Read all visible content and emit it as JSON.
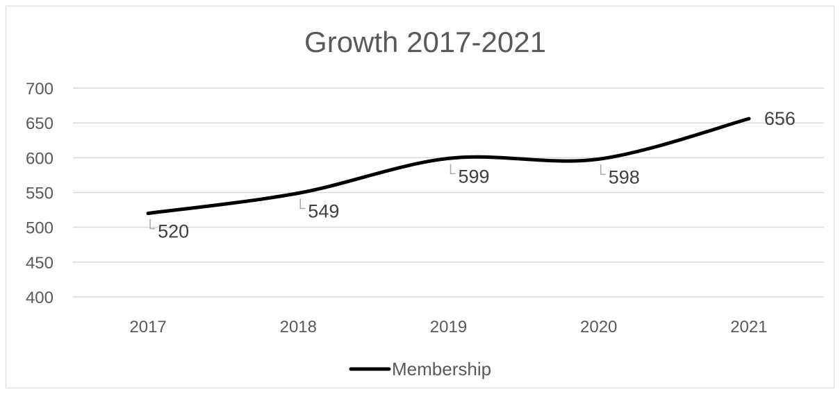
{
  "chart_data": {
    "type": "line",
    "title": "Growth 2017-2021",
    "categories": [
      "2017",
      "2018",
      "2019",
      "2020",
      "2021"
    ],
    "series": [
      {
        "name": "Membership",
        "values": [
          520,
          549,
          599,
          598,
          656
        ],
        "color": "#000000",
        "smooth": true
      }
    ],
    "ylim": [
      400,
      700
    ],
    "yticks": [
      400,
      450,
      500,
      550,
      600,
      650,
      700
    ],
    "grid": true,
    "legend": "bottom",
    "data_labels": [
      "520",
      "549",
      "599",
      "598",
      "656"
    ],
    "colors": {
      "gridline": "#d9d9d9",
      "text": "#595959",
      "leader": "#a6a6a6"
    }
  }
}
